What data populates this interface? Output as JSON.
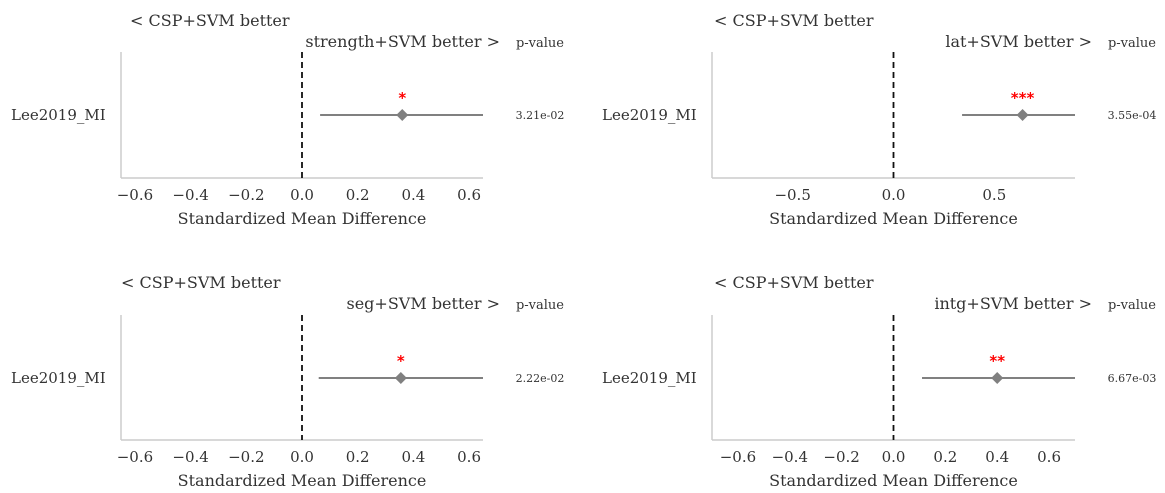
{
  "chart_data": [
    {
      "type": "forest",
      "better_left": "< CSP+SVM better",
      "better_right": "strength+SVM better >",
      "pvalue_header": "p-value",
      "xlabel": "Standardized Mean Difference",
      "xlim": [
        -0.65,
        0.65
      ],
      "xticks": [
        -0.6,
        -0.4,
        -0.2,
        0.0,
        0.2,
        0.4,
        0.6
      ],
      "xtick_labels": [
        "−0.6",
        "−0.4",
        "−0.2",
        "0.0",
        "0.2",
        "0.4",
        "0.6"
      ],
      "reference_line": 0,
      "rows": [
        {
          "dataset": "Lee2019_MI",
          "smd": 0.36,
          "ci": [
            0.065,
            0.65
          ],
          "pvalue": "3.21e-02",
          "stars": "*"
        }
      ]
    },
    {
      "type": "forest",
      "better_left": "< CSP+SVM better",
      "better_right": "lat+SVM better >",
      "pvalue_header": "p-value",
      "xlabel": "Standardized Mean Difference",
      "xlim": [
        -0.9,
        0.9
      ],
      "xticks": [
        -0.5,
        0.0,
        0.5
      ],
      "xtick_labels": [
        "−0.5",
        "0.0",
        "0.5"
      ],
      "reference_line": 0,
      "rows": [
        {
          "dataset": "Lee2019_MI",
          "smd": 0.64,
          "ci": [
            0.34,
            0.9
          ],
          "pvalue": "3.55e-04",
          "stars": "***"
        }
      ]
    },
    {
      "type": "forest",
      "better_left": "< CSP+SVM better",
      "better_right": "seg+SVM better >",
      "pvalue_header": "p-value",
      "xlabel": "Standardized Mean Difference",
      "xlim": [
        -0.65,
        0.65
      ],
      "xticks": [
        -0.6,
        -0.4,
        -0.2,
        0.0,
        0.2,
        0.4,
        0.6
      ],
      "xtick_labels": [
        "−0.6",
        "−0.4",
        "−0.2",
        "0.0",
        "0.2",
        "0.4",
        "0.6"
      ],
      "reference_line": 0,
      "rows": [
        {
          "dataset": "Lee2019_MI",
          "smd": 0.355,
          "ci": [
            0.06,
            0.65
          ],
          "pvalue": "2.22e-02",
          "stars": "*"
        }
      ]
    },
    {
      "type": "forest",
      "better_left": "< CSP+SVM better",
      "better_right": "intg+SVM better >",
      "pvalue_header": "p-value",
      "xlabel": "Standardized Mean Difference",
      "xlim": [
        -0.7,
        0.7
      ],
      "xticks": [
        -0.6,
        -0.4,
        -0.2,
        0.0,
        0.2,
        0.4,
        0.6
      ],
      "xtick_labels": [
        "−0.6",
        "−0.4",
        "−0.2",
        "0.0",
        "0.2",
        "0.4",
        "0.6"
      ],
      "reference_line": 0,
      "rows": [
        {
          "dataset": "Lee2019_MI",
          "smd": 0.4,
          "ci": [
            0.11,
            0.7
          ],
          "pvalue": "6.67e-03",
          "stars": "**"
        }
      ]
    }
  ]
}
